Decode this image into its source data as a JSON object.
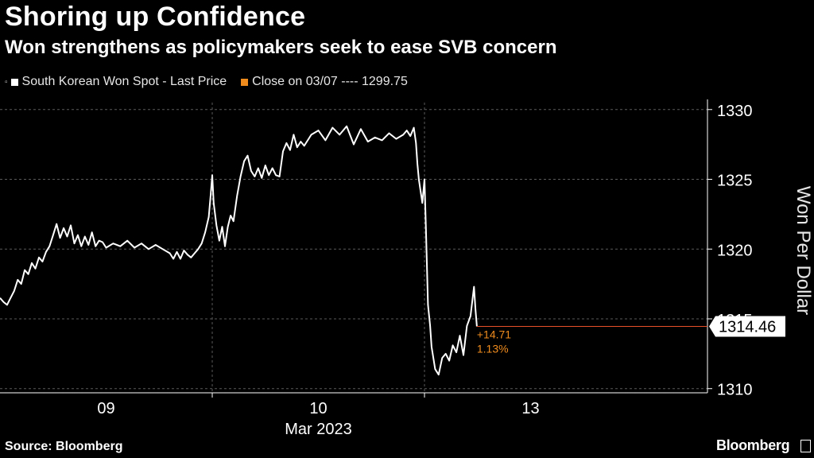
{
  "header": {
    "title": "Shoring up Confidence",
    "subtitle": "Won strengthens as policymakers seek to ease SVB concern"
  },
  "legend": {
    "series_label": "South Korean Won Spot - Last Price",
    "close_label": "Close on 03/07 ---- 1299.75"
  },
  "footer": {
    "source": "Source: Bloomberg",
    "brand": "Bloomberg"
  },
  "colors": {
    "background": "#000000",
    "line": "#ffffff",
    "accent": "#f08c1e",
    "ref_line": "#e8502a",
    "grid": "#5a5a5a"
  },
  "chart_data": {
    "type": "line",
    "title": "Shoring up Confidence",
    "subtitle": "Won strengthens as policymakers seek to ease SVB concern",
    "ylabel": "Won Per Dollar",
    "xlabel": "Mar 2023",
    "ylim": [
      1309.7,
      1330.5
    ],
    "yticks": [
      1310,
      1315,
      1320,
      1325,
      1330
    ],
    "xlim": [
      0,
      10
    ],
    "xticks": [
      {
        "x": 1.5,
        "label": "09"
      },
      {
        "x": 4.5,
        "label": "10"
      },
      {
        "x": 7.5,
        "label": "13"
      }
    ],
    "x_sublabel": {
      "x": 4.5,
      "label": "Mar 2023"
    },
    "day_separators": [
      3,
      6
    ],
    "last_value": 1314.46,
    "last_value_label": "1314.46",
    "change": "+14.71",
    "change_pct": "1.13%",
    "series": [
      {
        "name": "South Korean Won Spot - Last Price",
        "x": [
          0,
          0.05,
          0.1,
          0.15,
          0.2,
          0.25,
          0.3,
          0.35,
          0.4,
          0.45,
          0.5,
          0.55,
          0.6,
          0.65,
          0.7,
          0.75,
          0.8,
          0.85,
          0.9,
          0.95,
          1.0,
          1.05,
          1.1,
          1.15,
          1.2,
          1.25,
          1.3,
          1.35,
          1.4,
          1.45,
          1.5,
          1.6,
          1.7,
          1.8,
          1.9,
          2.0,
          2.1,
          2.2,
          2.3,
          2.4,
          2.45,
          2.5,
          2.55,
          2.6,
          2.65,
          2.7,
          2.75,
          2.8,
          2.85,
          2.9,
          2.95,
          2.98,
          3.0,
          3.02,
          3.06,
          3.1,
          3.14,
          3.18,
          3.22,
          3.26,
          3.3,
          3.35,
          3.4,
          3.45,
          3.5,
          3.55,
          3.6,
          3.65,
          3.7,
          3.75,
          3.8,
          3.85,
          3.9,
          3.95,
          4.0,
          4.05,
          4.1,
          4.15,
          4.2,
          4.25,
          4.3,
          4.4,
          4.5,
          4.6,
          4.7,
          4.8,
          4.9,
          5.0,
          5.1,
          5.2,
          5.3,
          5.4,
          5.5,
          5.6,
          5.7,
          5.75,
          5.8,
          5.85,
          5.88,
          5.9,
          5.92,
          5.95,
          5.97,
          6.0,
          6.02,
          6.05,
          6.08,
          6.1,
          6.15,
          6.2,
          6.25,
          6.3,
          6.35,
          6.4,
          6.45,
          6.5,
          6.55,
          6.6,
          6.65,
          6.7,
          6.72,
          6.74
        ],
        "y": [
          1316.5,
          1316.2,
          1316.0,
          1316.5,
          1317.0,
          1317.8,
          1317.5,
          1318.5,
          1318.2,
          1319.0,
          1318.6,
          1319.4,
          1319.1,
          1319.8,
          1320.2,
          1321.0,
          1321.8,
          1320.8,
          1321.5,
          1320.9,
          1321.7,
          1320.4,
          1321.0,
          1320.2,
          1320.9,
          1320.3,
          1321.2,
          1320.2,
          1320.6,
          1320.5,
          1320.1,
          1320.4,
          1320.2,
          1320.6,
          1320.1,
          1320.4,
          1320.0,
          1320.3,
          1320.0,
          1319.7,
          1319.3,
          1319.8,
          1319.3,
          1319.9,
          1319.6,
          1319.4,
          1319.7,
          1320.0,
          1320.4,
          1321.2,
          1322.3,
          1324.0,
          1325.3,
          1323.3,
          1321.7,
          1320.6,
          1321.6,
          1320.2,
          1321.6,
          1322.4,
          1322.0,
          1323.8,
          1325.2,
          1326.3,
          1326.7,
          1325.6,
          1325.2,
          1325.8,
          1325.1,
          1326.0,
          1325.3,
          1325.8,
          1325.3,
          1325.2,
          1327.0,
          1327.6,
          1327.1,
          1328.2,
          1327.3,
          1327.7,
          1327.4,
          1328.2,
          1328.5,
          1327.8,
          1328.7,
          1328.2,
          1328.8,
          1327.5,
          1328.6,
          1327.7,
          1328.0,
          1327.8,
          1328.3,
          1327.9,
          1328.2,
          1328.5,
          1328.1,
          1328.7,
          1327.6,
          1326.1,
          1325.0,
          1324.0,
          1323.3,
          1325.0,
          1321.5,
          1316.0,
          1314.5,
          1313.0,
          1311.4,
          1311.0,
          1312.2,
          1312.5,
          1312.0,
          1313.1,
          1312.6,
          1313.8,
          1312.4,
          1314.5,
          1315.2,
          1317.3,
          1315.7,
          1314.46
        ]
      },
      {
        "name": "Close on 03/07",
        "value": 1299.75
      }
    ]
  }
}
